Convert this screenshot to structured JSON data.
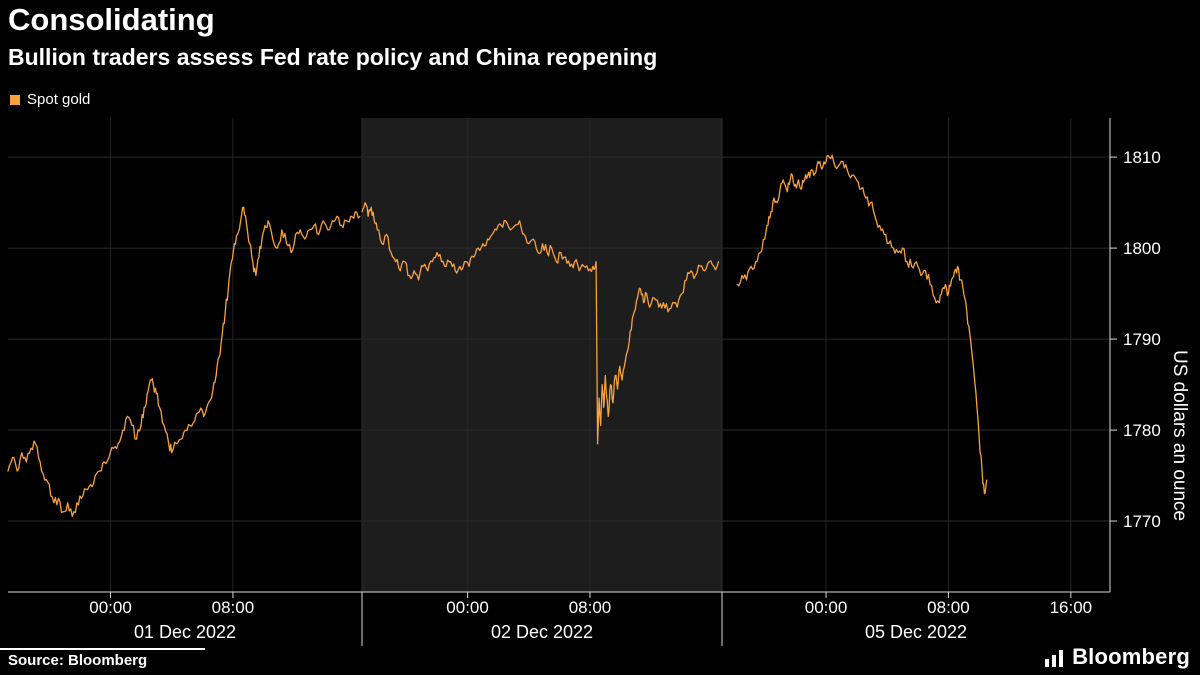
{
  "header": {
    "title": "Consolidating",
    "subtitle": "Bullion traders assess Fed rate policy and China reopening"
  },
  "legend": {
    "label": "Spot gold",
    "color": "#F8A13D"
  },
  "footer": {
    "source": "Source: Bloomberg",
    "brand": "Bloomberg"
  },
  "chart_data": {
    "type": "line",
    "title": "Consolidating",
    "subtitle": "Bullion traders assess Fed rate policy and China reopening",
    "series_name": "Spot gold",
    "ylabel": "US dollars an ounce",
    "ylim": [
      1762.2,
      1814.3
    ],
    "y_ticks": [
      1770,
      1780,
      1790,
      1800,
      1810
    ],
    "legend_position": "top-left",
    "grid": true,
    "colors": {
      "line": "#F8A13D",
      "band": "#1D1D1D",
      "grid_h": "#2B2B2B",
      "grid_v": "#242424",
      "divider": "#2F2F2F",
      "axis": "#D6D6D6",
      "text": "#FFFFFF",
      "background": "#000000"
    },
    "panels": [
      {
        "date": "01 Dec 2022",
        "shaded": false,
        "tick_hours": [
          0,
          8
        ],
        "tick_labels": [
          "00:00",
          "08:00"
        ],
        "points": [
          [
            -6.7,
            1775.5
          ],
          [
            -6.4,
            1777
          ],
          [
            -6.1,
            1775.5
          ],
          [
            -5.8,
            1777.5
          ],
          [
            -5.5,
            1776.5
          ],
          [
            -5.2,
            1778
          ],
          [
            -4.9,
            1778.5
          ],
          [
            -4.6,
            1776.5
          ],
          [
            -4.3,
            1774.5
          ],
          [
            -4.0,
            1774
          ],
          [
            -3.7,
            1772
          ],
          [
            -3.4,
            1772.5
          ],
          [
            -3.1,
            1771
          ],
          [
            -2.8,
            1772
          ],
          [
            -2.5,
            1770.5
          ],
          [
            -2.2,
            1772
          ],
          [
            -1.9,
            1772.5
          ],
          [
            -1.6,
            1773.5
          ],
          [
            -1.3,
            1774
          ],
          [
            -1.0,
            1775
          ],
          [
            -0.7,
            1775.5
          ],
          [
            -0.4,
            1776.5
          ],
          [
            -0.1,
            1777
          ],
          [
            0.2,
            1778
          ],
          [
            0.5,
            1778.5
          ],
          [
            0.8,
            1780
          ],
          [
            1.1,
            1781.5
          ],
          [
            1.4,
            1780.5
          ],
          [
            1.7,
            1779
          ],
          [
            2.0,
            1780.5
          ],
          [
            2.2,
            1782.5
          ],
          [
            2.4,
            1784
          ],
          [
            2.6,
            1785.5
          ],
          [
            2.8,
            1785
          ],
          [
            3.0,
            1784
          ],
          [
            3.2,
            1782.5
          ],
          [
            3.5,
            1780.5
          ],
          [
            3.8,
            1778.5
          ],
          [
            4.0,
            1777.5
          ],
          [
            4.3,
            1778.5
          ],
          [
            4.6,
            1779
          ],
          [
            4.9,
            1780
          ],
          [
            5.2,
            1780.5
          ],
          [
            5.5,
            1781
          ],
          [
            5.8,
            1782
          ],
          [
            6.1,
            1781.5
          ],
          [
            6.4,
            1783
          ],
          [
            6.7,
            1784.5
          ],
          [
            6.9,
            1786
          ],
          [
            7.1,
            1788
          ],
          [
            7.3,
            1790.5
          ],
          [
            7.5,
            1793
          ],
          [
            7.7,
            1795.5
          ],
          [
            7.9,
            1798.5
          ],
          [
            8.1,
            1800.5
          ],
          [
            8.3,
            1801.5
          ],
          [
            8.5,
            1803
          ],
          [
            8.7,
            1804.5
          ],
          [
            8.9,
            1802.5
          ],
          [
            9.1,
            1800.5
          ],
          [
            9.3,
            1798.5
          ],
          [
            9.5,
            1797
          ],
          [
            9.7,
            1799
          ],
          [
            9.9,
            1801
          ],
          [
            10.1,
            1802.5
          ],
          [
            10.3,
            1803
          ],
          [
            10.6,
            1801
          ],
          [
            10.9,
            1800
          ],
          [
            11.2,
            1802
          ],
          [
            11.5,
            1800.5
          ],
          [
            11.8,
            1799.5
          ],
          [
            12.1,
            1801.5
          ],
          [
            12.4,
            1802
          ],
          [
            12.7,
            1801
          ],
          [
            13.0,
            1802
          ],
          [
            13.3,
            1802.5
          ],
          [
            13.6,
            1801.5
          ],
          [
            13.9,
            1803
          ],
          [
            14.2,
            1802
          ],
          [
            14.5,
            1803
          ],
          [
            14.8,
            1803.5
          ],
          [
            15.1,
            1802.5
          ],
          [
            15.4,
            1803
          ],
          [
            15.7,
            1803.5
          ],
          [
            16.0,
            1804
          ],
          [
            16.3,
            1803.5
          ]
        ]
      },
      {
        "date": "02 Dec 2022",
        "shaded": true,
        "tick_hours": [
          0,
          8
        ],
        "tick_labels": [
          "00:00",
          "08:00"
        ],
        "points": [
          [
            -6.9,
            1804
          ],
          [
            -6.7,
            1805
          ],
          [
            -6.5,
            1803.5
          ],
          [
            -6.3,
            1804.5
          ],
          [
            -6.1,
            1803
          ],
          [
            -5.9,
            1802
          ],
          [
            -5.6,
            1800.5
          ],
          [
            -5.3,
            1801.5
          ],
          [
            -5.0,
            1799.5
          ],
          [
            -4.7,
            1798.5
          ],
          [
            -4.4,
            1797.5
          ],
          [
            -4.1,
            1798.5
          ],
          [
            -3.8,
            1797
          ],
          [
            -3.5,
            1797.5
          ],
          [
            -3.2,
            1796.5
          ],
          [
            -2.9,
            1798
          ],
          [
            -2.6,
            1797.5
          ],
          [
            -2.3,
            1798.5
          ],
          [
            -2.0,
            1799.5
          ],
          [
            -1.7,
            1798.5
          ],
          [
            -1.4,
            1798
          ],
          [
            -1.1,
            1798.5
          ],
          [
            -0.8,
            1797.5
          ],
          [
            -0.5,
            1798
          ],
          [
            -0.2,
            1798.5
          ],
          [
            0.1,
            1798
          ],
          [
            0.4,
            1799
          ],
          [
            0.7,
            1800
          ],
          [
            1.0,
            1800.5
          ],
          [
            1.3,
            1801
          ],
          [
            1.6,
            1801.5
          ],
          [
            1.9,
            1802
          ],
          [
            2.2,
            1802.5
          ],
          [
            2.5,
            1803
          ],
          [
            2.8,
            1802
          ],
          [
            3.1,
            1802.5
          ],
          [
            3.4,
            1803
          ],
          [
            3.7,
            1801.5
          ],
          [
            4.0,
            1800.5
          ],
          [
            4.3,
            1801
          ],
          [
            4.6,
            1799.5
          ],
          [
            4.9,
            1800.5
          ],
          [
            5.2,
            1799.5
          ],
          [
            5.5,
            1800
          ],
          [
            5.8,
            1798.5
          ],
          [
            6.1,
            1799.5
          ],
          [
            6.4,
            1799
          ],
          [
            6.7,
            1798
          ],
          [
            7.0,
            1798.5
          ],
          [
            7.3,
            1797.5
          ],
          [
            7.6,
            1798
          ],
          [
            7.9,
            1797.5
          ],
          [
            8.2,
            1798
          ],
          [
            8.4,
            1798.5
          ],
          [
            8.5,
            1778.5
          ],
          [
            8.6,
            1783.5
          ],
          [
            8.7,
            1780.5
          ],
          [
            8.8,
            1785
          ],
          [
            8.9,
            1782.5
          ],
          [
            9.0,
            1786
          ],
          [
            9.1,
            1783.5
          ],
          [
            9.2,
            1781.5
          ],
          [
            9.35,
            1785
          ],
          [
            9.5,
            1783
          ],
          [
            9.65,
            1786
          ],
          [
            9.8,
            1784.5
          ],
          [
            9.95,
            1787
          ],
          [
            10.1,
            1785.5
          ],
          [
            10.3,
            1787.5
          ],
          [
            10.5,
            1789
          ],
          [
            10.7,
            1791
          ],
          [
            10.9,
            1793
          ],
          [
            11.1,
            1794.5
          ],
          [
            11.3,
            1795.5
          ],
          [
            11.5,
            1794
          ],
          [
            11.7,
            1795
          ],
          [
            11.9,
            1793.5
          ],
          [
            12.2,
            1794.5
          ],
          [
            12.5,
            1793.5
          ],
          [
            12.8,
            1794
          ],
          [
            13.1,
            1793
          ],
          [
            13.4,
            1794
          ],
          [
            13.7,
            1793.5
          ],
          [
            14.0,
            1795
          ],
          [
            14.3,
            1796.5
          ],
          [
            14.6,
            1797.5
          ],
          [
            14.9,
            1797
          ],
          [
            15.2,
            1798
          ],
          [
            15.5,
            1797.5
          ],
          [
            15.8,
            1798.5
          ],
          [
            16.1,
            1798
          ],
          [
            16.4,
            1798.5
          ]
        ]
      },
      {
        "date": "05 Dec 2022",
        "shaded": false,
        "tick_hours": [
          0,
          8,
          16
        ],
        "tick_labels": [
          "00:00",
          "08:00",
          "16:00"
        ],
        "points": [
          [
            -5.8,
            1796
          ],
          [
            -5.5,
            1797
          ],
          [
            -5.2,
            1796.5
          ],
          [
            -4.9,
            1798
          ],
          [
            -4.6,
            1798.5
          ],
          [
            -4.3,
            1799.5
          ],
          [
            -4.0,
            1801
          ],
          [
            -3.8,
            1802.5
          ],
          [
            -3.6,
            1804
          ],
          [
            -3.4,
            1805.5
          ],
          [
            -3.2,
            1805
          ],
          [
            -3.0,
            1806.5
          ],
          [
            -2.8,
            1807.5
          ],
          [
            -2.6,
            1806.5
          ],
          [
            -2.4,
            1807
          ],
          [
            -2.2,
            1808
          ],
          [
            -2.0,
            1807
          ],
          [
            -1.8,
            1807.5
          ],
          [
            -1.6,
            1806.5
          ],
          [
            -1.4,
            1807.5
          ],
          [
            -1.2,
            1808
          ],
          [
            -1.0,
            1808.5
          ],
          [
            -0.8,
            1808
          ],
          [
            -0.6,
            1809
          ],
          [
            -0.4,
            1809.5
          ],
          [
            -0.2,
            1809
          ],
          [
            0.0,
            1809.5
          ],
          [
            0.2,
            1810
          ],
          [
            0.5,
            1809.5
          ],
          [
            0.8,
            1809
          ],
          [
            1.1,
            1809.5
          ],
          [
            1.4,
            1808.5
          ],
          [
            1.7,
            1808
          ],
          [
            2.0,
            1807.5
          ],
          [
            2.3,
            1806.5
          ],
          [
            2.6,
            1805.5
          ],
          [
            2.9,
            1805
          ],
          [
            3.2,
            1803.5
          ],
          [
            3.5,
            1802.5
          ],
          [
            3.8,
            1801.5
          ],
          [
            4.1,
            1800.5
          ],
          [
            4.4,
            1800
          ],
          [
            4.7,
            1799.5
          ],
          [
            5.0,
            1800
          ],
          [
            5.3,
            1798.5
          ],
          [
            5.6,
            1798
          ],
          [
            5.9,
            1798.5
          ],
          [
            6.2,
            1797
          ],
          [
            6.5,
            1797.5
          ],
          [
            6.8,
            1796
          ],
          [
            7.1,
            1794.5
          ],
          [
            7.4,
            1794
          ],
          [
            7.6,
            1795.5
          ],
          [
            7.8,
            1796
          ],
          [
            8.0,
            1795
          ],
          [
            8.2,
            1796.5
          ],
          [
            8.4,
            1797.5
          ],
          [
            8.6,
            1798
          ],
          [
            8.8,
            1796.5
          ],
          [
            9.0,
            1795
          ],
          [
            9.2,
            1793
          ],
          [
            9.4,
            1790.5
          ],
          [
            9.6,
            1787.5
          ],
          [
            9.8,
            1784
          ],
          [
            10.0,
            1779.5
          ],
          [
            10.2,
            1775.5
          ],
          [
            10.35,
            1773
          ],
          [
            10.5,
            1774.5
          ]
        ]
      }
    ]
  }
}
